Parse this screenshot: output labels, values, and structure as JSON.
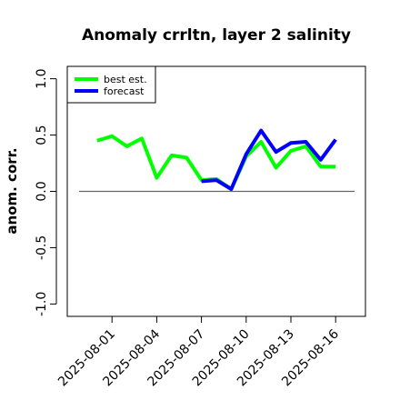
{
  "chart_data": {
    "type": "line",
    "title": "Anomaly crrltn, layer 2 salinity",
    "ylabel": "anom. corr.",
    "x": [
      "2025-07-31",
      "2025-08-01",
      "2025-08-02",
      "2025-08-03",
      "2025-08-04",
      "2025-08-05",
      "2025-08-06",
      "2025-08-07",
      "2025-08-08",
      "2025-08-09",
      "2025-08-10",
      "2025-08-11",
      "2025-08-12",
      "2025-08-13",
      "2025-08-14",
      "2025-08-15",
      "2025-08-16"
    ],
    "series": [
      {
        "name": "best est.",
        "color": "#00ff00",
        "values": [
          0.45,
          0.49,
          0.4,
          0.47,
          0.12,
          0.32,
          0.3,
          0.1,
          0.11,
          0.02,
          0.31,
          0.44,
          0.21,
          0.36,
          0.4,
          0.22,
          0.22
        ]
      },
      {
        "name": "forecast",
        "color": "#0000ff",
        "values": [
          null,
          null,
          null,
          null,
          null,
          null,
          null,
          0.09,
          0.1,
          0.02,
          0.33,
          0.54,
          0.35,
          0.43,
          0.44,
          0.28,
          0.46
        ]
      }
    ],
    "xlim": [
      "2025-07-29",
      "2025-08-18"
    ],
    "xticks": [
      "2025-08-01",
      "2025-08-04",
      "2025-08-07",
      "2025-08-10",
      "2025-08-13",
      "2025-08-16"
    ],
    "xtick_colors": [
      "#000000",
      "#000000",
      "#228b22",
      "#000000",
      "#000000",
      "#000000"
    ],
    "ylim": [
      -1.11,
      1.11
    ],
    "yticks": [
      {
        "value": -1,
        "label": "-1.0"
      },
      -0.5,
      {
        "value": 0,
        "label": "0.0"
      },
      0.5,
      {
        "value": 1,
        "label": "1.0"
      }
    ],
    "hline": 0,
    "legend": "top-left"
  }
}
